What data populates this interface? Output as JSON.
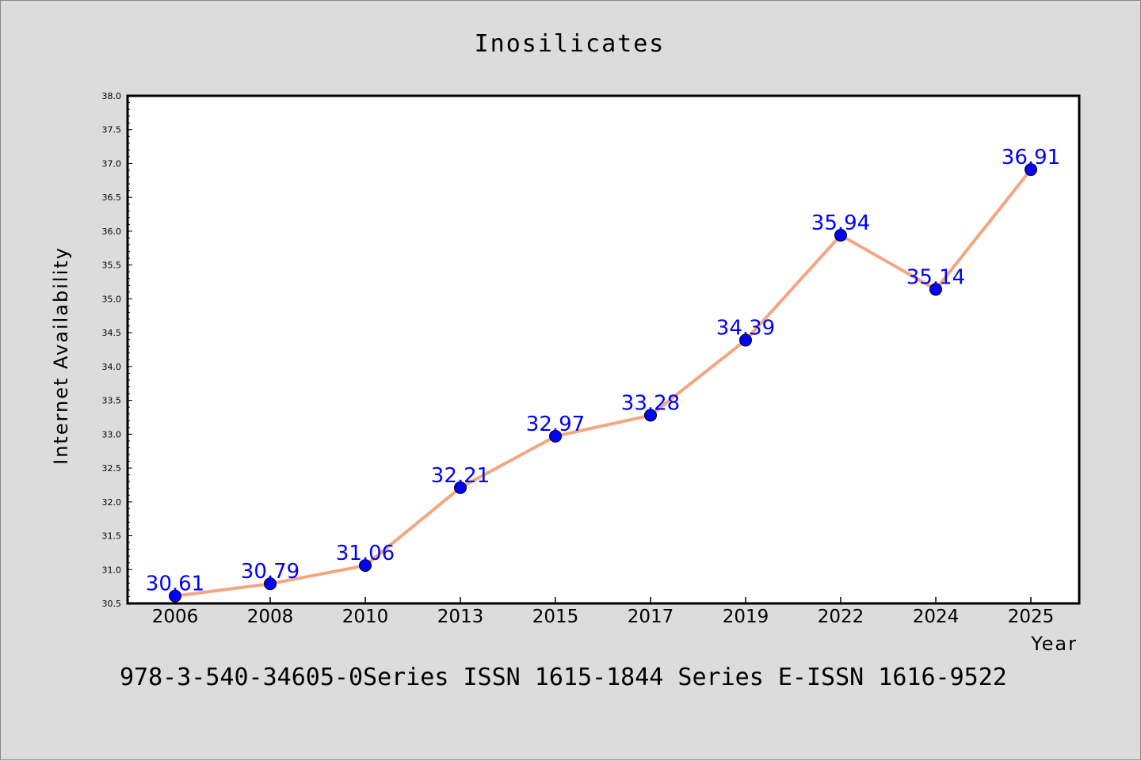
{
  "chart_data": {
    "type": "line",
    "title": "Inosilicates",
    "xlabel": "Year",
    "ylabel": "Internet Availability",
    "categories": [
      "2006",
      "2008",
      "2010",
      "2013",
      "2015",
      "2017",
      "2019",
      "2022",
      "2024",
      "2025"
    ],
    "series": [
      {
        "values": [
          30.61,
          30.79,
          31.06,
          32.21,
          32.97,
          33.28,
          34.39,
          35.94,
          35.14,
          36.91
        ],
        "line_color": "#f4a582",
        "marker_color": "#0000ff"
      }
    ],
    "data_labels": [
      "30.61",
      "30.79",
      "31.06",
      "32.21",
      "32.97",
      "33.28",
      "34.39",
      "35.94",
      "35.14",
      "36.91"
    ],
    "data_label_color": "#0000ff",
    "ylim": [
      30.5,
      38.0
    ],
    "yticks": [
      "30.5",
      "31.0",
      "31.5",
      "32.0",
      "32.5",
      "33.0",
      "33.5",
      "34.0",
      "34.5",
      "35.0",
      "35.5",
      "36.0",
      "36.5",
      "37.0",
      "37.5",
      "38.0"
    ],
    "grid": false,
    "legend": "none"
  },
  "footer": {
    "text": "978-3-540-34605-0Series ISSN 1615-1844 Series E-ISSN 1616-9522"
  },
  "colors": {
    "background": "#dcdcdc",
    "plot_background": "#ffffff",
    "axis": "#000000"
  }
}
